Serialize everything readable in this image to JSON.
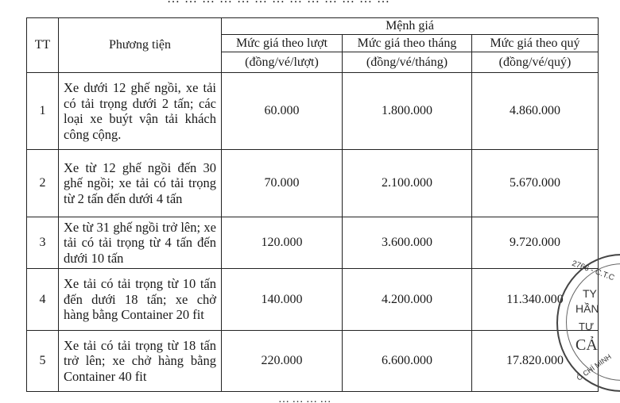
{
  "table": {
    "headers": {
      "tt": "TT",
      "vehicle": "Phương tiện",
      "group": "Mệnh giá",
      "columns": [
        {
          "label": "Mức giá theo lượt",
          "unit": "(đồng/vé/lượt)"
        },
        {
          "label": "Mức giá theo tháng",
          "unit": "(đồng/vé/tháng)"
        },
        {
          "label": "Mức giá theo quý",
          "unit": "(đồng/vé/quý)"
        }
      ]
    },
    "rows": [
      {
        "tt": "1",
        "vehicle": "Xe dưới 12 ghế ngồi, xe tải có tải trọng dưới 2 tấn; các loại xe buýt vận tải khách công cộng.",
        "luot": "60.000",
        "thang": "1.800.000",
        "quy": "4.860.000"
      },
      {
        "tt": "2",
        "vehicle": "Xe từ 12 ghế ngồi đến 30 ghế ngồi; xe tải có tải trọng từ 2 tấn đến dưới 4 tấn",
        "luot": "70.000",
        "thang": "2.100.000",
        "quy": "5.670.000"
      },
      {
        "tt": "3",
        "vehicle": "Xe từ 31 ghế ngồi trở lên; xe tải có tải trọng từ 4 tấn đến dưới 10 tấn",
        "luot": "120.000",
        "thang": "3.600.000",
        "quy": "9.720.000"
      },
      {
        "tt": "4",
        "vehicle": "Xe tải có tải trọng từ 10 tấn đến dưới 18 tấn; xe chở hàng bằng Container 20 fit",
        "luot": "140.000",
        "thang": "4.200.000",
        "quy": "11.340.000"
      },
      {
        "tt": "5",
        "vehicle": "Xe tải có tải trọng từ 18 tấn trở lên; xe chở hàng bằng Container 40 fit",
        "luot": "220.000",
        "thang": "6.600.000",
        "quy": "17.820.000"
      }
    ]
  },
  "stamp": {
    "arc_top": "2766 - C.T.C",
    "l1": "TY",
    "l2": "HẦN",
    "l3": "TƯ",
    "l4": "CẢ",
    "arc_bottom": "Ô CHÍ MINH"
  }
}
